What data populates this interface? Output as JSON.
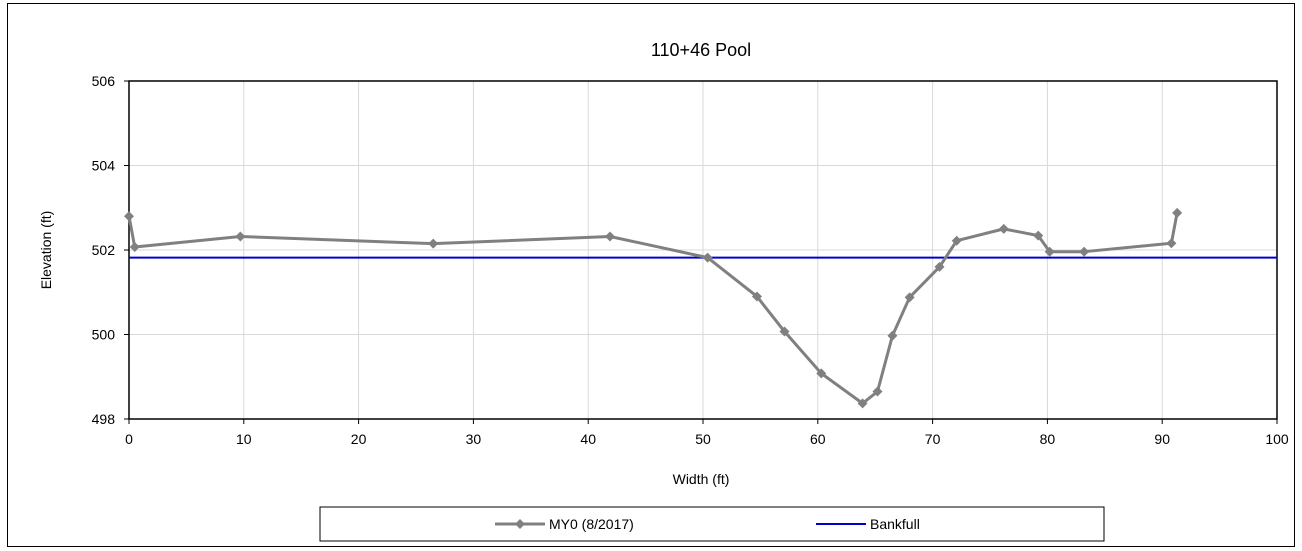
{
  "chart_data": {
    "type": "line",
    "title": "110+46 Pool",
    "xlabel": "Width (ft)",
    "ylabel": "Elevation (ft)",
    "xlim": [
      0,
      100
    ],
    "ylim": [
      498,
      506
    ],
    "x_ticks": [
      0,
      10,
      20,
      30,
      40,
      50,
      60,
      70,
      80,
      90,
      100
    ],
    "y_ticks": [
      498,
      500,
      502,
      504,
      506
    ],
    "grid": true,
    "legend_position": "bottom",
    "series": [
      {
        "name": "MY0 (8/2017)",
        "color": "#808080",
        "marker": "diamond",
        "x": [
          0,
          0.5,
          9.7,
          26.5,
          41.9,
          50.4,
          54.7,
          57.1,
          60.3,
          63.9,
          65.2,
          66.5,
          68.0,
          70.6,
          72.1,
          76.2,
          79.2,
          80.2,
          83.2,
          90.8,
          91.3
        ],
        "y": [
          502.8,
          502.07,
          502.32,
          502.15,
          502.32,
          501.82,
          500.9,
          500.07,
          499.08,
          498.37,
          498.65,
          499.97,
          500.88,
          501.6,
          502.22,
          502.5,
          502.34,
          501.96,
          501.96,
          502.16,
          502.88
        ]
      },
      {
        "name": "Bankfull",
        "color": "#0000cc",
        "marker": "none",
        "x": [
          0,
          100
        ],
        "y": [
          501.82,
          501.82
        ]
      }
    ]
  }
}
